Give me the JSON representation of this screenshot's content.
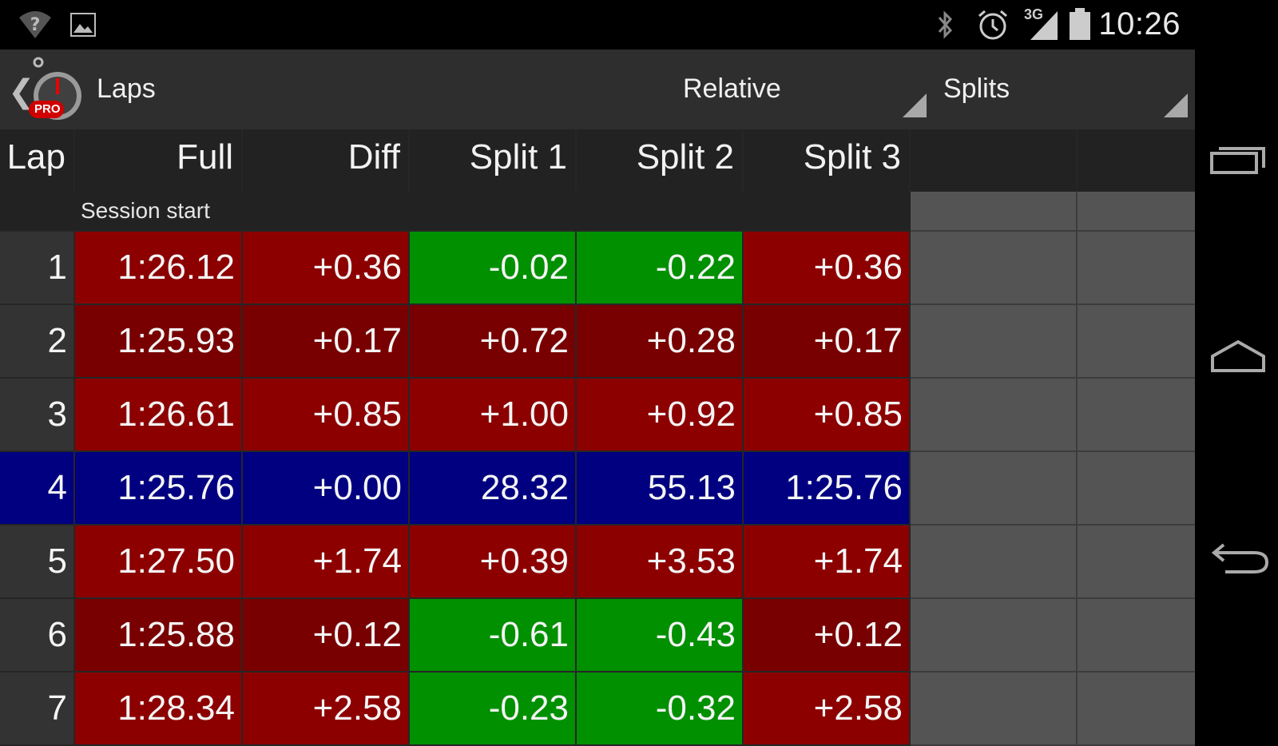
{
  "status_bar": {
    "time": "10:26",
    "network_label": "3G",
    "icons": [
      "wifi-question-icon",
      "image-notification-icon",
      "bluetooth-icon",
      "alarm-icon",
      "signal-3g-icon",
      "battery-icon"
    ]
  },
  "action_bar": {
    "title": "Laps",
    "logo_badge": "PRO",
    "spinner_mode": "Relative",
    "spinner_view": "Splits"
  },
  "table": {
    "headers": [
      "Lap",
      "Full",
      "Diff",
      "Split 1",
      "Split 2",
      "Split 3"
    ],
    "session_label": "Session start",
    "rows": [
      {
        "lap": "1",
        "full": "1:26.12",
        "diff": "+0.36",
        "s1": "-0.02",
        "s2": "-0.22",
        "s3": "+0.36"
      },
      {
        "lap": "2",
        "full": "1:25.93",
        "diff": "+0.17",
        "s1": "+0.72",
        "s2": "+0.28",
        "s3": "+0.17"
      },
      {
        "lap": "3",
        "full": "1:26.61",
        "diff": "+0.85",
        "s1": "+1.00",
        "s2": "+0.92",
        "s3": "+0.85"
      },
      {
        "lap": "4",
        "full": "1:25.76",
        "diff": "+0.00",
        "s1": "28.32",
        "s2": "55.13",
        "s3": "1:25.76"
      },
      {
        "lap": "5",
        "full": "1:27.50",
        "diff": "+1.74",
        "s1": "+0.39",
        "s2": "+3.53",
        "s3": "+1.74"
      },
      {
        "lap": "6",
        "full": "1:25.88",
        "diff": "+0.12",
        "s1": "-0.61",
        "s2": "-0.43",
        "s3": "+0.12"
      },
      {
        "lap": "7",
        "full": "1:28.34",
        "diff": "+2.58",
        "s1": "-0.23",
        "s2": "-0.32",
        "s3": "+2.58"
      }
    ]
  },
  "colors": {
    "red": "#8c0000",
    "dark_red": "#780000",
    "green": "#009000",
    "blue": "#000080",
    "empty_cell": "#545454"
  }
}
